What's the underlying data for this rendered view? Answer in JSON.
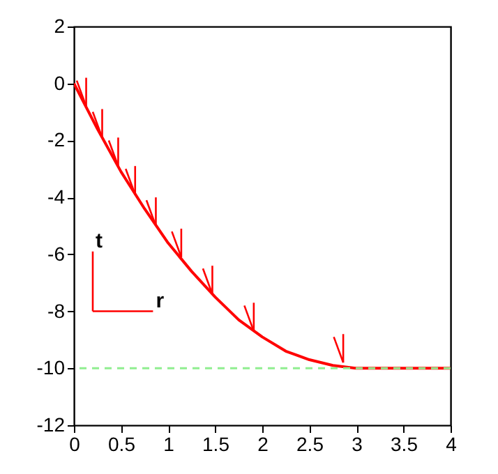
{
  "chart_data": {
    "type": "line",
    "x": [
      0,
      0.25,
      0.5,
      0.75,
      1,
      1.25,
      1.5,
      1.75,
      2,
      2.25,
      2.5,
      2.75,
      3,
      3.5,
      4
    ],
    "series": [
      {
        "color": "#ff0000",
        "values": [
          0,
          -1.6,
          -3.1,
          -4.4,
          -5.6,
          -6.6,
          -7.5,
          -8.3,
          -8.9,
          -9.4,
          -9.7,
          -9.9,
          -10,
          -10,
          -10
        ]
      },
      {
        "type": "line",
        "color": "#ff0000",
        "x": [
          0.13,
          0.13
        ],
        "values": [
          -0.8,
          0.2
        ]
      },
      {
        "type": "line",
        "color": "#ff0000",
        "x": [
          0.13,
          0.03
        ],
        "values": [
          -0.8,
          0.1
        ]
      },
      {
        "type": "line",
        "color": "#ff0000",
        "x": [
          0.3,
          0.3
        ],
        "values": [
          -1.9,
          -0.9
        ]
      },
      {
        "type": "line",
        "color": "#ff0000",
        "x": [
          0.3,
          0.2
        ],
        "values": [
          -1.9,
          -1.0
        ]
      },
      {
        "type": "line",
        "color": "#ff0000",
        "x": [
          0.47,
          0.47
        ],
        "values": [
          -2.9,
          -1.9
        ]
      },
      {
        "type": "line",
        "color": "#ff0000",
        "x": [
          0.47,
          0.37
        ],
        "values": [
          -2.9,
          -2.0
        ]
      },
      {
        "type": "line",
        "color": "#ff0000",
        "x": [
          0.65,
          0.65
        ],
        "values": [
          -3.9,
          -2.9
        ]
      },
      {
        "type": "line",
        "color": "#ff0000",
        "x": [
          0.65,
          0.55
        ],
        "values": [
          -3.9,
          -3.0
        ]
      },
      {
        "type": "line",
        "color": "#ff0000",
        "x": [
          0.87,
          0.87
        ],
        "values": [
          -5.0,
          -4.0
        ]
      },
      {
        "type": "line",
        "color": "#ff0000",
        "x": [
          0.87,
          0.77
        ],
        "values": [
          -5.0,
          -4.1
        ]
      },
      {
        "type": "line",
        "color": "#ff0000",
        "x": [
          1.14,
          1.14
        ],
        "values": [
          -6.1,
          -5.1
        ]
      },
      {
        "type": "line",
        "color": "#ff0000",
        "x": [
          1.14,
          1.04
        ],
        "values": [
          -6.1,
          -5.2
        ]
      },
      {
        "type": "line",
        "color": "#ff0000",
        "x": [
          1.47,
          1.47
        ],
        "values": [
          -7.4,
          -6.4
        ]
      },
      {
        "type": "line",
        "color": "#ff0000",
        "x": [
          1.47,
          1.37
        ],
        "values": [
          -7.4,
          -6.5
        ]
      },
      {
        "type": "line",
        "color": "#ff0000",
        "x": [
          1.91,
          1.91
        ],
        "values": [
          -8.7,
          -7.7
        ]
      },
      {
        "type": "line",
        "color": "#ff0000",
        "x": [
          1.91,
          1.81
        ],
        "values": [
          -8.7,
          -7.8
        ]
      },
      {
        "type": "line",
        "color": "#ff0000",
        "x": [
          2.86,
          2.86
        ],
        "values": [
          -9.8,
          -8.8
        ]
      },
      {
        "type": "line",
        "color": "#ff0000",
        "x": [
          2.86,
          2.76
        ],
        "values": [
          -9.8,
          -8.9
        ]
      },
      {
        "type": "line",
        "color": "#ff0000",
        "x": [
          0.2,
          0.2
        ],
        "values": [
          -8.0,
          -5.9
        ]
      },
      {
        "type": "line",
        "color": "#ff0000",
        "x": [
          0.2,
          0.84
        ],
        "values": [
          -8.0,
          -8.0
        ]
      }
    ],
    "annotations": [
      {
        "text": "t",
        "x": 0.2,
        "y": -5.9
      },
      {
        "text": "r",
        "x": 0.84,
        "y": -8.0
      }
    ],
    "ref_lines": [
      {
        "axis": "y",
        "value": -10,
        "color": "#90ee90",
        "line_style": "dashed"
      }
    ],
    "xlim": [
      0,
      4
    ],
    "xticks": [
      {
        "value": 0,
        "label": "0"
      },
      0.5,
      {
        "value": 1,
        "label": "1"
      },
      1.5,
      {
        "value": 2,
        "label": "2"
      },
      2.5,
      {
        "value": 3,
        "label": "3"
      },
      3.5,
      {
        "value": 4,
        "label": "4"
      }
    ],
    "ylim": [
      -12,
      2
    ],
    "yticks": [
      -12,
      -10,
      -8,
      -6,
      -4,
      -2,
      0,
      2
    ],
    "grid": false
  }
}
